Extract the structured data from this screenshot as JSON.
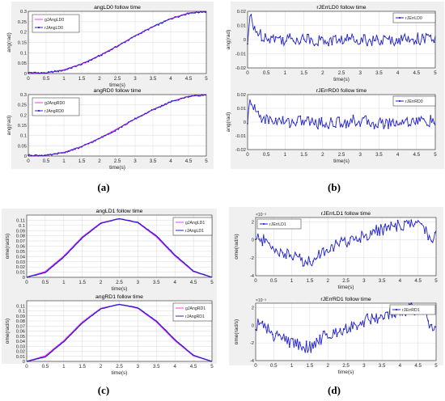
{
  "captions": [
    "(a)",
    "(b)",
    "(c)",
    "(d)"
  ],
  "colors": {
    "magenta": "#ff33ff",
    "blue": "#2222cc",
    "grid": "#d9d9d9",
    "panel_bg": "#f0f0f0"
  },
  "chart_data": [
    {
      "type": "line",
      "title": "angLD0 follow time",
      "xlabel": "time(s)",
      "ylabel": "ang(rad)",
      "xlim": [
        0,
        5
      ],
      "ylim": [
        0,
        0.3
      ],
      "x_ticks": [
        0,
        0.5,
        1,
        1.5,
        2,
        2.5,
        3,
        3.5,
        4,
        4.5,
        5
      ],
      "y_ticks": [
        0,
        0.05,
        0.1,
        0.15,
        0.2,
        0.25,
        0.3
      ],
      "y_tick_labels": [
        "0",
        "0.05",
        "0.1",
        "0.15",
        "0.2",
        "0.25",
        "0.3"
      ],
      "grid": true,
      "legend": "top-left",
      "series": [
        {
          "name": "gJAngLD0",
          "color": "#ff33ff",
          "style": "line",
          "x": [
            0,
            0.5,
            1,
            1.5,
            2,
            2.5,
            3,
            3.5,
            4,
            4.5,
            5
          ],
          "y": [
            0,
            0.003,
            0.018,
            0.047,
            0.087,
            0.133,
            0.182,
            0.226,
            0.265,
            0.292,
            0.3
          ]
        },
        {
          "name": "rJAngLD0",
          "color": "#2222cc",
          "style": "marker-line",
          "x": [
            0,
            0.5,
            1,
            1.5,
            2,
            2.5,
            3,
            3.5,
            4,
            4.5,
            5
          ],
          "y": [
            0.005,
            0.003,
            0.016,
            0.045,
            0.085,
            0.131,
            0.181,
            0.225,
            0.264,
            0.291,
            0.299
          ]
        }
      ]
    },
    {
      "type": "line",
      "title": "angRD0 follow time",
      "xlabel": "time(s)",
      "ylabel": "ang(rad)",
      "xlim": [
        0,
        5
      ],
      "ylim": [
        0,
        0.3
      ],
      "x_ticks": [
        0,
        0.5,
        1,
        1.5,
        2,
        2.5,
        3,
        3.5,
        4,
        4.5,
        5
      ],
      "y_ticks": [
        0,
        0.05,
        0.1,
        0.15,
        0.2,
        0.25,
        0.3
      ],
      "y_tick_labels": [
        "0",
        "0.05",
        "0.1",
        "0.15",
        "0.2",
        "0.25",
        "0.3"
      ],
      "grid": true,
      "legend": "top-left",
      "series": [
        {
          "name": "gJAngRD0",
          "color": "#ff33ff",
          "style": "line",
          "x": [
            0,
            0.5,
            1,
            1.5,
            2,
            2.5,
            3,
            3.5,
            4,
            4.5,
            5
          ],
          "y": [
            0,
            0.003,
            0.018,
            0.047,
            0.087,
            0.133,
            0.182,
            0.226,
            0.265,
            0.292,
            0.3
          ]
        },
        {
          "name": "rJAngRD0",
          "color": "#2222cc",
          "style": "marker-line",
          "x": [
            0,
            0.5,
            1,
            1.5,
            2,
            2.5,
            3,
            3.5,
            4,
            4.5,
            5
          ],
          "y": [
            0.005,
            0.003,
            0.016,
            0.045,
            0.085,
            0.131,
            0.181,
            0.225,
            0.264,
            0.291,
            0.299
          ]
        }
      ]
    },
    {
      "type": "line",
      "title": "rJErrLD0 follow time",
      "xlabel": "time(s)",
      "ylabel": "ang(rad)",
      "xlim": [
        0,
        5
      ],
      "ylim": [
        -0.02,
        0.02
      ],
      "x_ticks": [
        0,
        0.5,
        1,
        1.5,
        2,
        2.5,
        3,
        3.5,
        4,
        4.5,
        5
      ],
      "y_ticks": [
        -0.02,
        -0.01,
        0,
        0.01,
        0.02
      ],
      "y_tick_labels": [
        "-0.02",
        "-0.01",
        "0",
        "0.01",
        "0.02"
      ],
      "grid": true,
      "legend": "top-right",
      "series": [
        {
          "name": "rJErrLD0",
          "color": "#2222cc",
          "style": "marker-line",
          "x": [
            0,
            0.05,
            0.1,
            0.15,
            0.2,
            0.3,
            0.5,
            1,
            1.5,
            2,
            2.5,
            3,
            3.5,
            4,
            4.5,
            5
          ],
          "y": [
            -0.003,
            0.012,
            0.016,
            0.007,
            0.009,
            0.004,
            0.002,
            0.0,
            0.001,
            -0.001,
            0.0,
            0.001,
            -0.001,
            0.0,
            0.001,
            0.0
          ]
        }
      ]
    },
    {
      "type": "line",
      "title": "rJErrRD0 follow time",
      "xlabel": "time(s)",
      "ylabel": "ang(rad)",
      "xlim": [
        0,
        5
      ],
      "ylim": [
        -0.02,
        0.02
      ],
      "x_ticks": [
        0,
        0.5,
        1,
        1.5,
        2,
        2.5,
        3,
        3.5,
        4,
        4.5,
        5
      ],
      "y_ticks": [
        -0.02,
        -0.01,
        0,
        0.01,
        0.02
      ],
      "y_tick_labels": [
        "-0.02",
        "-0.01",
        "0",
        "0.01",
        "0.02"
      ],
      "grid": true,
      "legend": "top-right",
      "series": [
        {
          "name": "rJErrRD0",
          "color": "#2222cc",
          "style": "marker-line",
          "x": [
            0,
            0.05,
            0.1,
            0.15,
            0.2,
            0.3,
            0.5,
            1,
            1.5,
            2,
            2.5,
            3,
            3.5,
            4,
            4.5,
            5
          ],
          "y": [
            -0.003,
            0.013,
            0.017,
            0.008,
            0.009,
            0.005,
            0.002,
            0.0,
            0.001,
            -0.001,
            0.0,
            0.001,
            -0.001,
            0.0,
            0.001,
            0.0
          ]
        }
      ]
    },
    {
      "type": "line",
      "title": "angLD1 follow time",
      "xlabel": "time(s)",
      "ylabel": "ome(rad/s)",
      "xlim": [
        0,
        5
      ],
      "ylim": [
        0,
        0.12
      ],
      "x_ticks": [
        0,
        0.5,
        1,
        1.5,
        2,
        2.5,
        3,
        3.5,
        4,
        4.5,
        5
      ],
      "y_ticks": [
        0,
        0.01,
        0.02,
        0.03,
        0.04,
        0.05,
        0.06,
        0.07,
        0.08,
        0.09,
        0.1,
        0.11
      ],
      "y_tick_labels": [
        "0",
        "0.01",
        "0.02",
        "0.03",
        "0.04",
        "0.05",
        "0.06",
        "0.07",
        "0.08",
        "0.09",
        "0.1",
        "0.11"
      ],
      "grid": true,
      "legend": "top-right",
      "series": [
        {
          "name": "gJAngLD1",
          "color": "#ff33ff",
          "style": "line",
          "x": [
            0,
            0.5,
            1,
            1.5,
            2,
            2.5,
            3,
            3.5,
            4,
            4.5,
            5
          ],
          "y": [
            0,
            0.011,
            0.041,
            0.078,
            0.105,
            0.113,
            0.105,
            0.078,
            0.041,
            0.011,
            0
          ]
        },
        {
          "name": "rJAngLD1",
          "color": "#2222cc",
          "style": "line",
          "x": [
            0,
            0.5,
            1,
            1.5,
            2,
            2.5,
            3,
            3.5,
            4,
            4.5,
            5
          ],
          "y": [
            0,
            0.009,
            0.039,
            0.076,
            0.104,
            0.113,
            0.106,
            0.08,
            0.043,
            0.012,
            0
          ]
        }
      ]
    },
    {
      "type": "line",
      "title": "angRD1 follow time",
      "xlabel": "time(s)",
      "ylabel": "ome(rad/s)",
      "xlim": [
        0,
        5
      ],
      "ylim": [
        0,
        0.12
      ],
      "x_ticks": [
        0,
        0.5,
        1,
        1.5,
        2,
        2.5,
        3,
        3.5,
        4,
        4.5,
        5
      ],
      "y_ticks": [
        0,
        0.01,
        0.02,
        0.03,
        0.04,
        0.05,
        0.06,
        0.07,
        0.08,
        0.09,
        0.1,
        0.11
      ],
      "y_tick_labels": [
        "0",
        "0.01",
        "0.02",
        "0.03",
        "0.04",
        "0.05",
        "0.06",
        "0.07",
        "0.08",
        "0.09",
        "0.1",
        "0.11"
      ],
      "grid": true,
      "legend": "top-right",
      "series": [
        {
          "name": "gJAngRD1",
          "color": "#ff33ff",
          "style": "line",
          "x": [
            0,
            0.5,
            1,
            1.5,
            2,
            2.5,
            3,
            3.5,
            4,
            4.5,
            5
          ],
          "y": [
            0,
            0.011,
            0.041,
            0.078,
            0.105,
            0.113,
            0.105,
            0.078,
            0.041,
            0.011,
            0
          ]
        },
        {
          "name": "rJAngRD1",
          "color": "#2222cc",
          "style": "line",
          "x": [
            0,
            0.5,
            1,
            1.5,
            2,
            2.5,
            3,
            3.5,
            4,
            4.5,
            5
          ],
          "y": [
            0,
            0.009,
            0.039,
            0.076,
            0.104,
            0.113,
            0.106,
            0.08,
            0.043,
            0.012,
            0
          ]
        }
      ]
    },
    {
      "type": "line",
      "title": "rJErrLD1 follow time",
      "xlabel": "time(s)",
      "ylabel": "ome(rad/s)",
      "exponent": "×10⁻³",
      "xlim": [
        0,
        5
      ],
      "ylim": [
        -4,
        2.5
      ],
      "x_ticks": [
        0,
        0.5,
        1,
        1.5,
        2,
        2.5,
        3,
        3.5,
        4,
        4.5,
        5
      ],
      "y_ticks": [
        -4,
        -2,
        0,
        2
      ],
      "y_tick_labels": [
        "-4",
        "-2",
        "0",
        "2"
      ],
      "grid": true,
      "legend": "top-left",
      "series": [
        {
          "name": "rJErrLD1",
          "color": "#2222cc",
          "style": "marker-line",
          "x": [
            0,
            0.05,
            0.1,
            0.5,
            1,
            1.5,
            1.8,
            2,
            2.5,
            3,
            3.5,
            4,
            4.3,
            4.5,
            4.7,
            4.8,
            4.9,
            5
          ],
          "y": [
            0,
            0.1,
            0.3,
            -1.0,
            -1.8,
            -2.5,
            -1.5,
            -0.9,
            -0.2,
            0.5,
            1.2,
            1.5,
            1.9,
            1.6,
            1.4,
            0.4,
            -0.4,
            0.6
          ]
        }
      ]
    },
    {
      "type": "line",
      "title": "rJErrRD1 follow time",
      "xlabel": "time(s)",
      "ylabel": "ome(rad/s)",
      "exponent": "×10⁻³",
      "xlim": [
        0,
        5
      ],
      "ylim": [
        -4,
        2.5
      ],
      "x_ticks": [
        0,
        0.5,
        1,
        1.5,
        2,
        2.5,
        3,
        3.5,
        4,
        4.5,
        5
      ],
      "y_ticks": [
        -4,
        -2,
        0,
        2
      ],
      "y_tick_labels": [
        "-4",
        "-2",
        "0",
        "2"
      ],
      "grid": true,
      "legend": "top-right",
      "series": [
        {
          "name": "rJErrRD1",
          "color": "#2222cc",
          "style": "marker-line",
          "x": [
            0,
            0.05,
            0.1,
            0.5,
            1,
            1.5,
            1.8,
            2,
            2.5,
            3,
            3.5,
            4,
            4.3,
            4.5,
            4.7,
            4.8,
            4.9,
            5
          ],
          "y": [
            0,
            0.1,
            0.3,
            -1.1,
            -1.9,
            -2.6,
            -1.6,
            -1.0,
            -0.3,
            0.5,
            1.1,
            1.5,
            1.9,
            1.6,
            1.4,
            0.3,
            -0.6,
            0.5
          ]
        }
      ]
    }
  ]
}
